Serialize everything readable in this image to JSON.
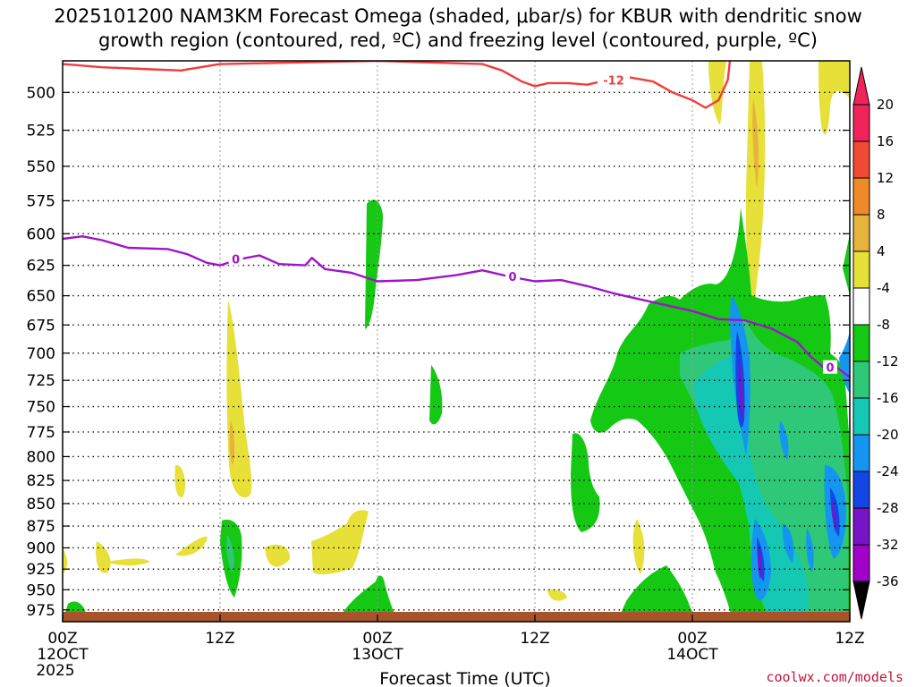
{
  "title_line1": "2025101200 NAM3KM Forecast Omega (shaded, μbar/s) for KBUR with dendritic snow",
  "title_line2": "growth region (contoured, red, ºC) and freezing level (contoured, purple, ºC)",
  "credit": "coolwx.com/models",
  "chart_data": {
    "type": "heatmap",
    "title": "2025101200 NAM3KM Forecast Omega (shaded, μbar/s) for KBUR with dendritic snow growth region (contoured, red, ºC) and freezing level (contoured, purple, ºC)",
    "xlabel": "Forecast Time (UTC)",
    "ylabel": "",
    "x_range_hours": [
      0,
      60
    ],
    "x_ticks": [
      {
        "hour": 0,
        "label": "00Z",
        "sub1": "12OCT",
        "sub2": "2025"
      },
      {
        "hour": 12,
        "label": "12Z",
        "sub1": "",
        "sub2": ""
      },
      {
        "hour": 24,
        "label": "00Z",
        "sub1": "13OCT",
        "sub2": ""
      },
      {
        "hour": 36,
        "label": "12Z",
        "sub1": "",
        "sub2": ""
      },
      {
        "hour": 48,
        "label": "00Z",
        "sub1": "14OCT",
        "sub2": ""
      },
      {
        "hour": 60,
        "label": "12Z",
        "sub1": "",
        "sub2": ""
      }
    ],
    "y_ticks": [
      "500",
      "525",
      "550",
      "575",
      "600",
      "625",
      "650",
      "675",
      "700",
      "725",
      "750",
      "775",
      "800",
      "825",
      "850",
      "875",
      "900",
      "925",
      "950",
      "975"
    ],
    "y_range_mb": [
      480,
      990
    ],
    "y_scale": "log-pressure",
    "grid": true,
    "colorbar": {
      "labels": [
        "20",
        "16",
        "12",
        "8",
        "4",
        "-4",
        "-8",
        "-12",
        "-16",
        "-20",
        "-24",
        "-28",
        "-32",
        "-36"
      ],
      "colors": [
        "#f0245a",
        "#f04a32",
        "#f08a28",
        "#e6b43c",
        "#e6e038",
        "#ffffff",
        "#14c814",
        "#2ec878",
        "#14c8b4",
        "#1496f0",
        "#1446e6",
        "#7814c8",
        "#a000c8",
        "#a0a0a0"
      ]
    },
    "series": [
      {
        "name": "-12",
        "color": "#f03c3c",
        "points": [
          [
            0,
            482
          ],
          [
            3,
            484
          ],
          [
            6,
            485
          ],
          [
            9,
            486
          ],
          [
            10.5,
            484
          ],
          [
            12,
            482
          ],
          [
            24,
            480
          ],
          [
            32,
            482
          ],
          [
            33.5,
            486
          ],
          [
            35,
            493
          ],
          [
            36,
            496
          ],
          [
            37,
            494
          ],
          [
            38.5,
            494
          ],
          [
            40,
            495
          ],
          [
            41.5,
            492
          ],
          [
            43,
            490
          ],
          [
            45,
            493
          ],
          [
            46.5,
            500
          ],
          [
            48,
            505
          ],
          [
            49,
            510
          ],
          [
            50,
            505
          ],
          [
            50.7,
            492
          ],
          [
            51,
            470
          ]
        ],
        "label_at_hour": 42
      },
      {
        "name": "0",
        "color": "#a014c8",
        "points": [
          [
            0,
            604
          ],
          [
            1.5,
            602
          ],
          [
            3,
            605
          ],
          [
            5,
            611
          ],
          [
            8,
            612
          ],
          [
            9.5,
            616
          ],
          [
            11,
            623
          ],
          [
            12,
            625
          ],
          [
            13.5,
            620
          ],
          [
            15,
            617
          ],
          [
            16.5,
            624
          ],
          [
            18.5,
            625
          ],
          [
            19,
            619
          ],
          [
            20,
            628
          ],
          [
            22,
            631
          ],
          [
            24,
            638
          ],
          [
            27,
            637
          ],
          [
            30,
            633
          ],
          [
            32,
            629
          ],
          [
            34,
            634
          ],
          [
            36,
            638
          ],
          [
            38,
            637
          ],
          [
            40,
            642
          ],
          [
            42,
            648
          ],
          [
            44,
            653
          ],
          [
            46,
            658
          ],
          [
            48,
            663
          ],
          [
            50,
            670
          ],
          [
            52,
            671
          ],
          [
            54,
            678
          ],
          [
            56,
            690
          ],
          [
            57,
            703
          ],
          [
            58,
            713
          ],
          [
            59,
            713
          ],
          [
            60,
            722
          ]
        ],
        "label_at_hour": 58.5
      }
    ],
    "annotations": [
      "-12",
      "0"
    ]
  }
}
